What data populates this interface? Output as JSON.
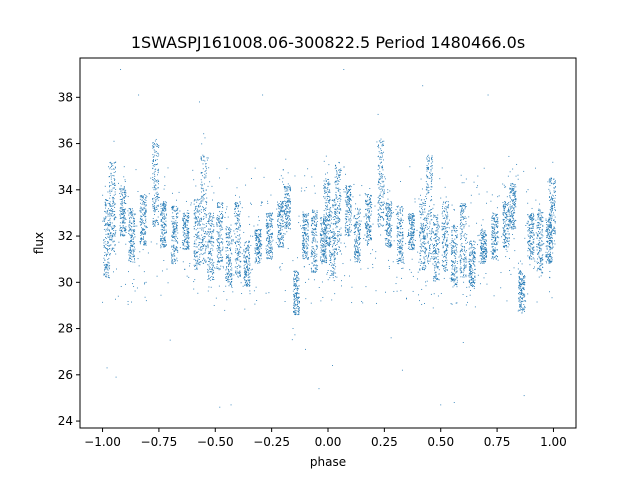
{
  "chart_data": {
    "type": "scatter",
    "title": "1SWASPJ161008.06-300822.5 Period 1480466.0s",
    "xlabel": "phase",
    "ylabel": "flux",
    "xlim": [
      -1.1,
      1.1
    ],
    "ylim": [
      23.7,
      39.7
    ],
    "xticks": [
      -1.0,
      -0.75,
      -0.5,
      -0.25,
      0.0,
      0.25,
      0.5,
      0.75,
      1.0
    ],
    "xtick_labels": [
      "−1.00",
      "−0.75",
      "−0.50",
      "−0.25",
      "0.00",
      "0.25",
      "0.50",
      "0.75",
      "1.00"
    ],
    "yticks": [
      24,
      26,
      28,
      30,
      32,
      34,
      36,
      38
    ],
    "ytick_labels": [
      "24",
      "26",
      "28",
      "30",
      "32",
      "34",
      "36",
      "38"
    ],
    "grid": false,
    "marker_color": "#1f77b4",
    "clusters": [
      {
        "phase": 0.02,
        "flux_min": 30.2,
        "flux_max": 33.6
      },
      {
        "phase": 0.045,
        "flux_min": 31.2,
        "flux_max": 35.2
      },
      {
        "phase": 0.09,
        "flux_min": 32.0,
        "flux_max": 34.2
      },
      {
        "phase": 0.13,
        "flux_min": 30.8,
        "flux_max": 33.2
      },
      {
        "phase": 0.18,
        "flux_min": 31.6,
        "flux_max": 33.8
      },
      {
        "phase": 0.235,
        "flux_min": 32.4,
        "flux_max": 36.2
      },
      {
        "phase": 0.27,
        "flux_min": 31.5,
        "flux_max": 33.5
      },
      {
        "phase": 0.32,
        "flux_min": 30.8,
        "flux_max": 33.3
      },
      {
        "phase": 0.37,
        "flux_min": 31.4,
        "flux_max": 33.0
      },
      {
        "phase": 0.42,
        "flux_min": 30.5,
        "flux_max": 33.6
      },
      {
        "phase": 0.45,
        "flux_min": 30.8,
        "flux_max": 35.5
      },
      {
        "phase": 0.48,
        "flux_min": 30.0,
        "flux_max": 33.0
      },
      {
        "phase": 0.52,
        "flux_min": 30.5,
        "flux_max": 33.5
      },
      {
        "phase": 0.56,
        "flux_min": 29.8,
        "flux_max": 32.5
      },
      {
        "phase": 0.6,
        "flux_min": 30.2,
        "flux_max": 33.5
      },
      {
        "phase": 0.64,
        "flux_min": 29.8,
        "flux_max": 31.8
      },
      {
        "phase": 0.69,
        "flux_min": 30.8,
        "flux_max": 32.3
      },
      {
        "phase": 0.74,
        "flux_min": 31.0,
        "flux_max": 33.0
      },
      {
        "phase": 0.79,
        "flux_min": 31.5,
        "flux_max": 33.5
      },
      {
        "phase": 0.82,
        "flux_min": 32.3,
        "flux_max": 34.3
      },
      {
        "phase": 0.86,
        "flux_min": 28.6,
        "flux_max": 30.5
      },
      {
        "phase": 0.9,
        "flux_min": 31.0,
        "flux_max": 33.0
      },
      {
        "phase": 0.94,
        "flux_min": 30.4,
        "flux_max": 33.2
      },
      {
        "phase": 0.98,
        "flux_min": 30.8,
        "flux_max": 32.8
      },
      {
        "phase": 0.995,
        "flux_min": 31.5,
        "flux_max": 34.5
      }
    ],
    "outliers": [
      [
        -0.92,
        39.2
      ],
      [
        -0.84,
        38.1
      ],
      [
        -0.57,
        37.8
      ],
      [
        -0.29,
        38.1
      ],
      [
        0.07,
        39.2
      ],
      [
        0.42,
        38.5
      ],
      [
        0.71,
        38.1
      ],
      [
        -0.75,
        35.9
      ],
      [
        0.24,
        35.9
      ],
      [
        -0.2,
        34.5
      ],
      [
        -0.93,
        29.4
      ],
      [
        -0.98,
        26.3
      ],
      [
        -0.94,
        25.9
      ],
      [
        -0.48,
        24.6
      ],
      [
        -0.43,
        24.7
      ],
      [
        -0.04,
        25.4
      ],
      [
        0.33,
        26.2
      ],
      [
        0.5,
        24.7
      ],
      [
        0.56,
        24.8
      ],
      [
        0.87,
        25.1
      ],
      [
        0.02,
        26.4
      ],
      [
        -0.7,
        27.5
      ],
      [
        0.28,
        27.6
      ],
      [
        -0.1,
        27.1
      ],
      [
        0.6,
        27.4
      ]
    ]
  }
}
